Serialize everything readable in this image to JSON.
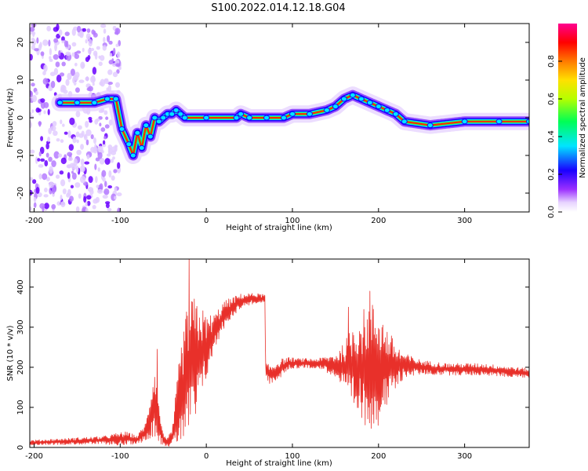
{
  "figure": {
    "title": "S100.2022.014.12.18.G04"
  },
  "colors": {
    "line_series": "#e8302a",
    "axis": "#000000",
    "background": "#ffffff"
  },
  "chart_data": [
    {
      "type": "heatmap",
      "title": "S100.2022.014.12.18.G04",
      "xlabel": "Height of straight line (km)",
      "ylabel": "Frequency (Hz)",
      "xlim": [
        -205,
        375
      ],
      "ylim": [
        -25,
        25
      ],
      "xticks": [
        -200,
        -100,
        0,
        100,
        200,
        300
      ],
      "xtick_labels": [
        "-200",
        "-100",
        "0",
        "100",
        "200",
        "300"
      ],
      "yticks": [
        -20,
        -10,
        0,
        10,
        20
      ],
      "ytick_labels": [
        "-20",
        "-10",
        "0",
        "10",
        "20"
      ],
      "colorbar": {
        "label": "Normalized spectral amplitude",
        "range": [
          0,
          1
        ],
        "ticks": [
          0.0,
          0.2,
          0.4,
          0.6,
          0.8
        ],
        "tick_labels": [
          "0.0",
          "0.2",
          "0.4",
          "0.6",
          "0.8"
        ],
        "colormap": "rainbow (white-violet-blue-cyan-green-yellow-orange-red-magenta)"
      },
      "ridge": {
        "x": [
          -170,
          -150,
          -130,
          -115,
          -105,
          -98,
          -90,
          -85,
          -80,
          -75,
          -70,
          -65,
          -60,
          -55,
          -50,
          -45,
          -40,
          -35,
          -30,
          -25,
          0,
          35,
          40,
          50,
          70,
          90,
          100,
          120,
          140,
          150,
          160,
          170,
          180,
          190,
          200,
          210,
          220,
          230,
          260,
          300,
          340,
          375
        ],
        "freq": [
          4,
          4,
          4,
          5,
          5,
          -3,
          -7,
          -10,
          -4,
          -8,
          -2,
          -5,
          0,
          -1,
          0,
          1,
          1,
          2,
          1,
          0,
          0,
          0,
          1,
          0,
          0,
          0,
          1,
          1,
          2,
          3,
          5,
          6,
          5,
          4,
          3,
          2,
          1,
          -1,
          -2,
          -1,
          -1,
          -1
        ]
      },
      "noise_region_x": [
        -205,
        -100
      ]
    },
    {
      "type": "line",
      "xlabel": "Height of straight line (km)",
      "ylabel": "SNR (10 * v/v)",
      "xlim": [
        -205,
        375
      ],
      "ylim": [
        0,
        470
      ],
      "xticks": [
        -200,
        -100,
        0,
        100,
        200,
        300
      ],
      "xtick_labels": [
        "-200",
        "-100",
        "0",
        "100",
        "200",
        "300"
      ],
      "yticks": [
        0,
        100,
        200,
        300,
        400
      ],
      "ytick_labels": [
        "0",
        "100",
        "200",
        "300",
        "400"
      ],
      "envelope": {
        "x": [
          -205,
          -120,
          -95,
          -80,
          -70,
          -60,
          -55,
          -50,
          -45,
          -40,
          -30,
          -20,
          -10,
          0,
          10,
          20,
          30,
          40,
          50,
          60,
          68,
          69,
          75,
          85,
          95,
          110,
          130,
          150,
          160,
          170,
          180,
          190,
          200,
          210,
          220,
          230,
          250,
          280,
          320,
          375
        ],
        "mean": [
          12,
          18,
          22,
          20,
          40,
          120,
          60,
          20,
          15,
          20,
          130,
          200,
          220,
          250,
          290,
          330,
          350,
          365,
          370,
          372,
          370,
          190,
          180,
          195,
          210,
          210,
          210,
          205,
          200,
          200,
          200,
          205,
          205,
          200,
          200,
          205,
          200,
          195,
          195,
          185
        ],
        "spread": [
          6,
          10,
          18,
          10,
          25,
          90,
          50,
          15,
          12,
          20,
          120,
          180,
          150,
          80,
          45,
          35,
          25,
          18,
          15,
          12,
          12,
          20,
          25,
          25,
          15,
          12,
          12,
          30,
          60,
          110,
          140,
          160,
          150,
          100,
          60,
          30,
          18,
          15,
          15,
          12
        ]
      },
      "peaks": [
        {
          "x": -57,
          "y": 245
        },
        {
          "x": -20,
          "y": 470
        },
        {
          "x": 190,
          "y": 390
        },
        {
          "x": 165,
          "y": 350
        }
      ]
    }
  ]
}
